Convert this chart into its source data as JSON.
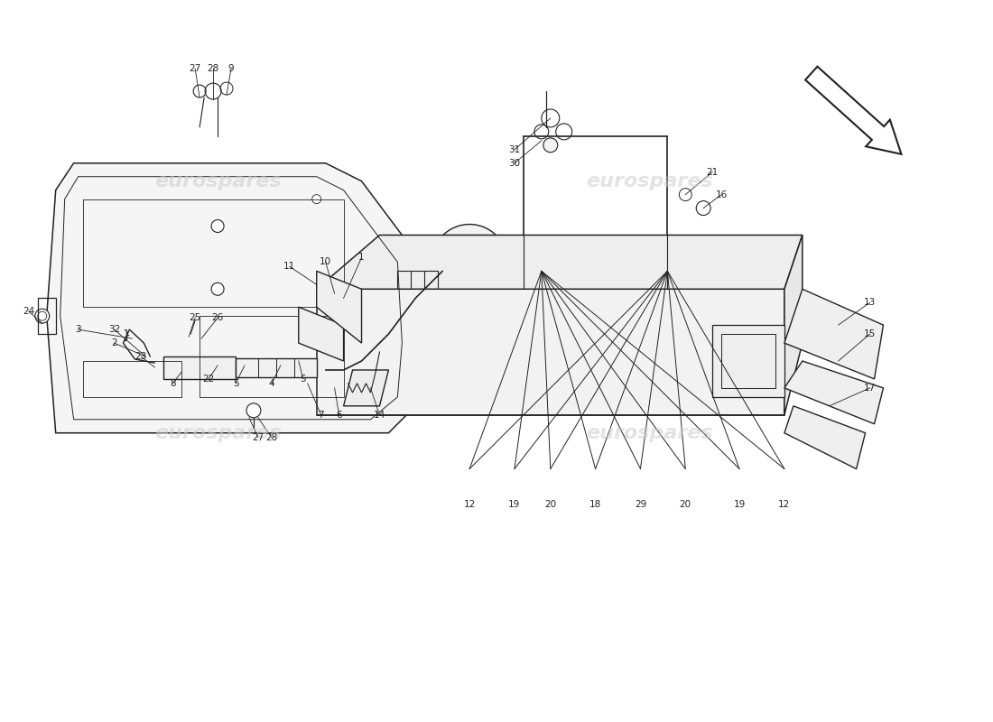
{
  "bg_color": "#ffffff",
  "line_color": "#222222",
  "watermark_color": "#cccccc",
  "watermark_text": "eurospares",
  "figsize": [
    11.0,
    8.0
  ],
  "dpi": 100
}
